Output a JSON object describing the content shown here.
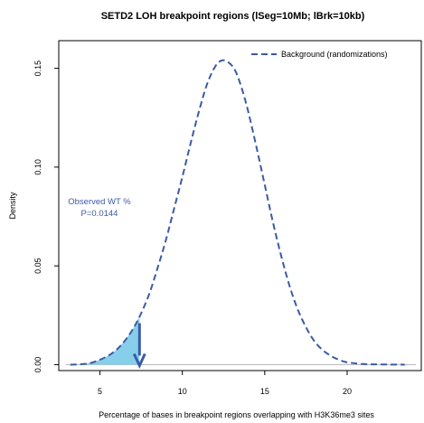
{
  "chart_data": {
    "type": "area",
    "title": "SETD2 LOH breakpoint regions (lSeg=10Mb; lBrk=10kb)",
    "xlabel": "Percentage of bases in breakpoint regions overlapping with H3K36me3 sites",
    "ylabel": "Density",
    "xlim": [
      2.5,
      24.5
    ],
    "ylim": [
      -0.003,
      0.164
    ],
    "x_ticks": [
      5,
      10,
      15,
      20
    ],
    "x_tick_labels": [
      "5",
      "10",
      "15",
      "20"
    ],
    "y_ticks": [
      0.0,
      0.05,
      0.1,
      0.15
    ],
    "y_tick_labels": [
      "0.00",
      "0.05",
      "0.10",
      "0.15"
    ],
    "grid": false,
    "legend": {
      "position": "top-right",
      "entries": [
        {
          "label": "Background (randomizations)",
          "style": "dashed",
          "color": "#3b5ba5"
        }
      ]
    },
    "series": [
      {
        "name": "Background (randomizations)",
        "style": "dashed",
        "color": "#3b5ba5",
        "x": [
          3.2,
          4.0,
          4.5,
          5.0,
          5.5,
          6.0,
          6.5,
          7.0,
          7.5,
          8.0,
          8.5,
          9.0,
          9.5,
          10.0,
          10.5,
          11.0,
          11.5,
          12.0,
          12.4,
          12.8,
          13.2,
          13.6,
          14.0,
          14.5,
          15.0,
          15.5,
          16.0,
          16.5,
          17.0,
          17.5,
          18.0,
          18.5,
          19.0,
          19.5,
          20.0,
          21.0,
          22.0,
          23.5
        ],
        "y": [
          0.0,
          0.0003,
          0.001,
          0.0025,
          0.0045,
          0.0075,
          0.012,
          0.018,
          0.026,
          0.036,
          0.049,
          0.063,
          0.079,
          0.095,
          0.112,
          0.128,
          0.142,
          0.151,
          0.154,
          0.153,
          0.149,
          0.14,
          0.128,
          0.11,
          0.091,
          0.072,
          0.055,
          0.04,
          0.028,
          0.019,
          0.012,
          0.0075,
          0.0045,
          0.0025,
          0.0012,
          0.0003,
          0.0001,
          0.0
        ]
      }
    ],
    "shaded_region": {
      "x_from": 3.2,
      "x_to": 7.4,
      "color": "#87ceeb"
    },
    "observed": {
      "x": 7.4,
      "arrow_y_top": 0.021,
      "arrow_y_bottom": 0.0,
      "color": "#3b5ba5"
    },
    "annotation": {
      "lines": [
        "Observed WT %",
        "P=0.0144"
      ],
      "color": "#3b5ba5"
    },
    "baseline_color": "#bdbdbd"
  }
}
